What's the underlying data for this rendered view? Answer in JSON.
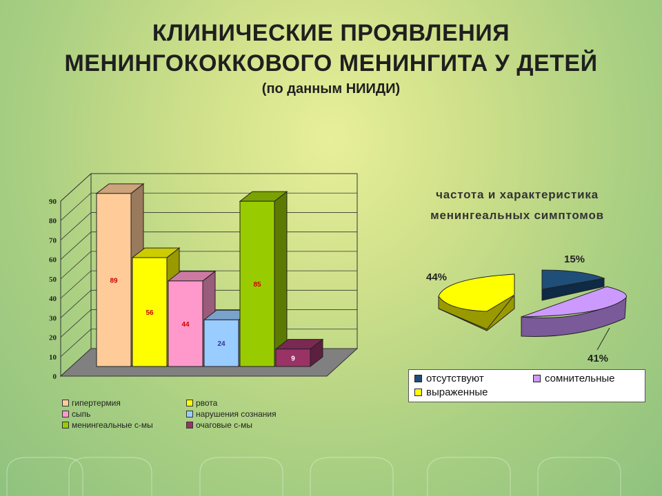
{
  "slide": {
    "title_line1": "КЛИНИЧЕСКИЕ ПРОЯВЛЕНИЯ",
    "title_line2": "МЕНИНГОКОККОВОГО МЕНИНГИТА У ДЕТЕЙ",
    "title_line3": "(по данным НИИДИ)"
  },
  "chart_data": [
    {
      "type": "bar",
      "title": "",
      "categories": [
        "гипертермия",
        "рвота",
        "сыпь",
        "нарушения сознания",
        "менингеальные с-мы",
        "очаговые с-мы"
      ],
      "values": [
        89,
        56,
        44,
        24,
        85,
        9
      ],
      "value_labels": [
        "89",
        "56",
        "44",
        "24",
        "85",
        "9"
      ],
      "colors": [
        "#ffcc99",
        "#ffff00",
        "#ff99cc",
        "#99ccff",
        "#99cc00",
        "#993366"
      ],
      "ylim": [
        0,
        90
      ],
      "yticks": [
        "0",
        "10",
        "20",
        "30",
        "40",
        "50",
        "60",
        "70",
        "80",
        "90"
      ],
      "grid": true,
      "legend": "bottom"
    },
    {
      "type": "pie",
      "title": "частота и характеристика менингеальных симптомов",
      "title_line1": "частота и характеристика",
      "title_line2": "менингеальных симптомов",
      "labels": [
        "отсутствуют",
        "сомнительные",
        "выраженные"
      ],
      "values": [
        15,
        41,
        44
      ],
      "value_labels": [
        "15%",
        "41%",
        "44%"
      ],
      "colors": [
        "#1f4e79",
        "#cc99ff",
        "#ffff00"
      ],
      "legend": "bottom"
    }
  ]
}
